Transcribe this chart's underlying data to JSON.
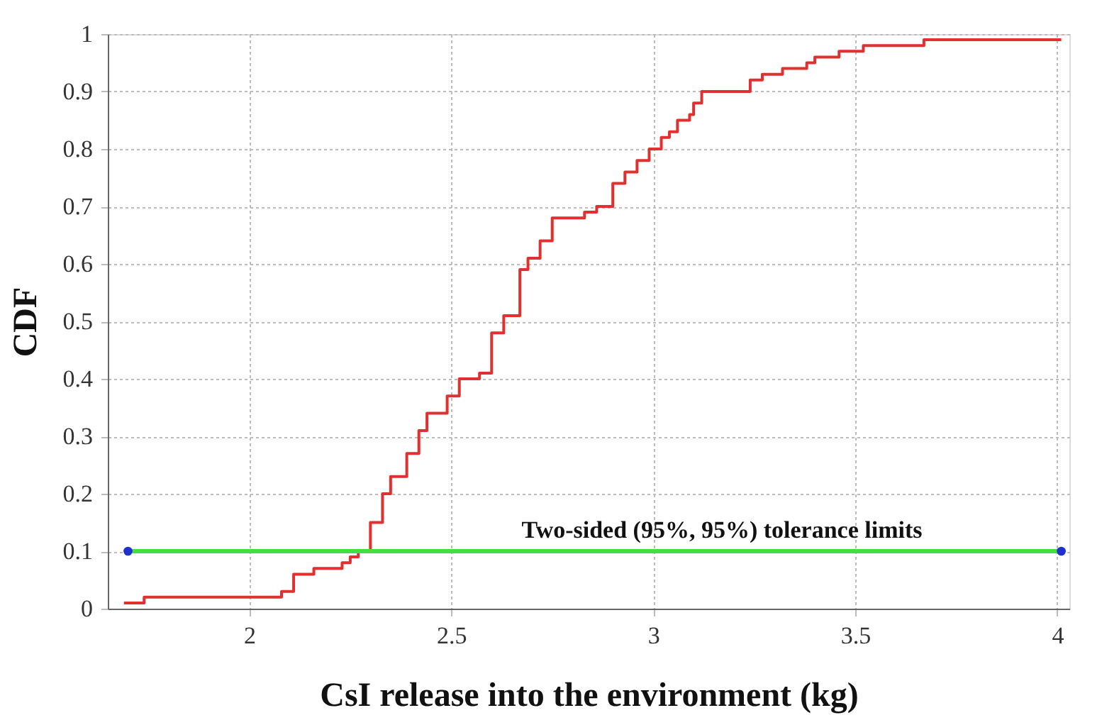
{
  "chart_data": {
    "type": "step",
    "xlabel": "CsI release into the environment (kg)",
    "ylabel": "CDF",
    "xlim": [
      1.65,
      4.03
    ],
    "ylim": [
      0,
      1
    ],
    "xticks": [
      2,
      2.5,
      3,
      3.5,
      4
    ],
    "yticks": [
      0,
      0.1,
      0.2,
      0.3,
      0.4,
      0.5,
      0.6,
      0.7,
      0.8,
      0.9,
      1
    ],
    "grid": true,
    "annotations": [
      "Two-sided (95%, 95%) tolerance limits"
    ],
    "series": [
      {
        "color": "#e03030",
        "x": [
          1.69,
          1.74,
          2.08,
          2.11,
          2.16,
          2.23,
          2.25,
          2.27,
          2.3,
          2.33,
          2.35,
          2.39,
          2.42,
          2.44,
          2.49,
          2.52,
          2.57,
          2.6,
          2.63,
          2.67,
          2.69,
          2.72,
          2.75,
          2.83,
          2.86,
          2.9,
          2.93,
          2.96,
          2.99,
          3.02,
          3.04,
          3.06,
          3.09,
          3.1,
          3.12,
          3.24,
          3.27,
          3.32,
          3.38,
          3.4,
          3.46,
          3.52,
          3.67,
          4.01
        ],
        "values": [
          0.01,
          0.02,
          0.03,
          0.06,
          0.07,
          0.08,
          0.09,
          0.1,
          0.15,
          0.2,
          0.23,
          0.27,
          0.31,
          0.34,
          0.37,
          0.4,
          0.41,
          0.48,
          0.51,
          0.59,
          0.61,
          0.64,
          0.68,
          0.69,
          0.7,
          0.74,
          0.76,
          0.78,
          0.8,
          0.82,
          0.83,
          0.85,
          0.86,
          0.88,
          0.9,
          0.92,
          0.93,
          0.94,
          0.95,
          0.96,
          0.97,
          0.98,
          0.99,
          0.99
        ]
      },
      {
        "type": "line",
        "color": "#44dd44",
        "x": [
          1.7,
          4.01
        ],
        "values": [
          0.1,
          0.1
        ]
      },
      {
        "type": "scatter",
        "color": "#1f2fd0",
        "marker": "circle",
        "x": [
          1.7,
          4.01
        ],
        "values": [
          0.1,
          0.1
        ]
      }
    ]
  }
}
